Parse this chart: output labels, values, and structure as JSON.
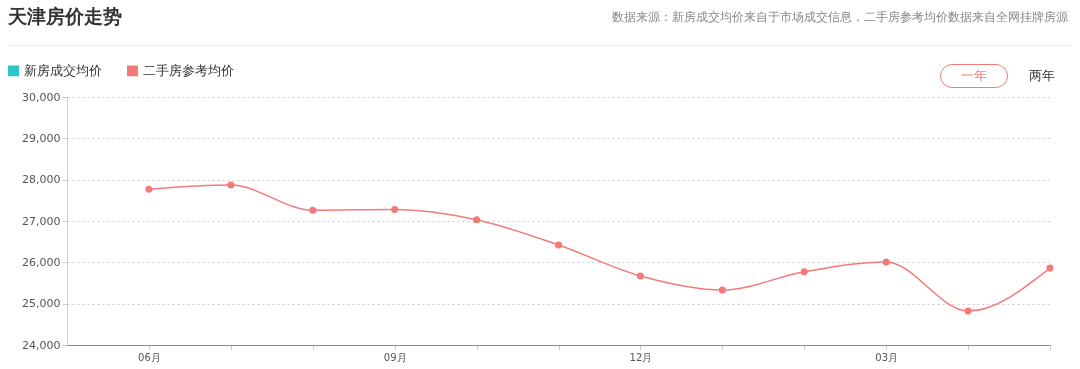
{
  "chart_data": {
    "type": "line",
    "title": "天津房价走势",
    "annotations": [
      "数据来源：新房成交均价来自于市场成交信息，二手房参考均价数据来自全网挂牌房源",
      "一年",
      "两年"
    ],
    "categories": [
      "06月",
      null,
      null,
      "09月",
      null,
      null,
      "12月",
      null,
      null,
      "03月",
      null,
      null
    ],
    "series": [
      {
        "name": "新房成交均价",
        "color": "#2ec7c9",
        "values": [
          null,
          null,
          null,
          null,
          null,
          null,
          null,
          null,
          null,
          null,
          null,
          null
        ]
      },
      {
        "name": "二手房参考均价",
        "color": "#f47a7a",
        "values": [
          27770,
          27870,
          27260,
          27280,
          27030,
          26420,
          25670,
          25330,
          25770,
          26010,
          24820,
          25860
        ]
      }
    ],
    "ylim": [
      24000,
      30000
    ],
    "yticks": [
      {
        "value": 24000,
        "label": "24,000"
      },
      {
        "value": 25000,
        "label": "25,000"
      },
      {
        "value": 26000,
        "label": "26,000"
      },
      {
        "value": 27000,
        "label": "27,000"
      },
      {
        "value": 28000,
        "label": "28,000"
      },
      {
        "value": 29000,
        "label": "29,000"
      },
      {
        "value": 30000,
        "label": "30,000"
      }
    ],
    "grid": "y",
    "legend": "top left",
    "marker": "circle",
    "line_style": "solid"
  }
}
